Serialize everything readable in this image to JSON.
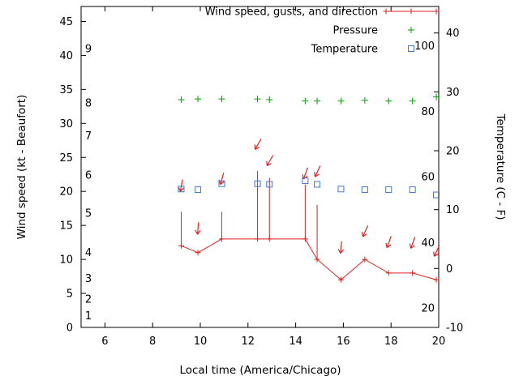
{
  "chart_data": {
    "type": "line",
    "title": "",
    "xlabel": "Local time (America/Chicago)",
    "ylabel_left": "Wind speed (kt - Beaufort)",
    "ylabel_right": "Temperature (C - F)",
    "x_range": [
      5,
      20
    ],
    "x_ticks": [
      6,
      8,
      10,
      12,
      14,
      16,
      18,
      20
    ],
    "y_left_range": [
      0,
      47.2
    ],
    "y_left_ticks": [
      0,
      5,
      10,
      15,
      20,
      25,
      30,
      35,
      40,
      45
    ],
    "beaufort_inner_labels": [
      {
        "label": "1",
        "kt": 1.7
      },
      {
        "label": "2",
        "kt": 4.2
      },
      {
        "label": "3",
        "kt": 7.2
      },
      {
        "label": "4",
        "kt": 11.0
      },
      {
        "label": "5",
        "kt": 16.8
      },
      {
        "label": "6",
        "kt": 22.4
      },
      {
        "label": "7",
        "kt": 28.2
      },
      {
        "label": "8",
        "kt": 33.0
      },
      {
        "label": "9",
        "kt": 41.0
      }
    ],
    "y_right_range": [
      -10,
      44.5
    ],
    "y_right_ticks": [
      -10,
      0,
      10,
      20,
      30,
      40
    ],
    "fahrenheit_inner_labels": [
      {
        "label": "20",
        "c": -6.7
      },
      {
        "label": "40",
        "c": 4.4
      },
      {
        "label": "60",
        "c": 15.6
      },
      {
        "label": "80",
        "c": 26.7
      },
      {
        "label": "100",
        "c": 37.8
      }
    ],
    "colors": {
      "wind": "#dd2222",
      "pressure": "#00a000",
      "temperature": "#4477cc",
      "axis": "#000000"
    },
    "x": [
      9.2,
      9.9,
      10.9,
      12.4,
      12.9,
      14.4,
      14.9,
      15.9,
      16.9,
      17.9,
      18.9,
      19.9
    ],
    "series": {
      "wind_speed_kt": [
        12,
        11,
        13,
        13,
        13,
        13,
        10,
        7,
        10,
        8,
        8,
        7
      ],
      "wind_gust_kt": [
        17,
        null,
        17,
        23,
        22,
        21,
        18,
        null,
        null,
        null,
        null,
        null
      ],
      "wind_direction_arrows": [
        {
          "x": 9.2,
          "kt": 20.7,
          "rot_deg": 10
        },
        {
          "x": 9.9,
          "kt": 14.4,
          "rot_deg": 5
        },
        {
          "x": 10.9,
          "kt": 21.7,
          "rot_deg": 15
        },
        {
          "x": 12.4,
          "kt": 26.8,
          "rot_deg": 30
        },
        {
          "x": 12.9,
          "kt": 24.4,
          "rot_deg": 30
        },
        {
          "x": 14.4,
          "kt": 22.5,
          "rot_deg": 20
        },
        {
          "x": 14.9,
          "kt": 22.8,
          "rot_deg": 25
        },
        {
          "x": 15.9,
          "kt": 11.6,
          "rot_deg": 5
        },
        {
          "x": 16.9,
          "kt": 14.0,
          "rot_deg": 25
        },
        {
          "x": 17.9,
          "kt": 12.4,
          "rot_deg": 20
        },
        {
          "x": 18.9,
          "kt": 12.3,
          "rot_deg": 20
        },
        {
          "x": 19.9,
          "kt": 11.1,
          "rot_deg": 25
        }
      ],
      "pressure_display_y_kt": [
        33.5,
        33.6,
        33.6,
        33.6,
        33.5,
        33.3,
        33.3,
        33.3,
        33.4,
        33.3,
        33.3,
        33.9
      ],
      "temperature_c": [
        13.5,
        13.4,
        14.4,
        14.4,
        14.3,
        14.9,
        14.3,
        13.5,
        13.4,
        13.4,
        13.4,
        12.5
      ]
    },
    "legend": {
      "position": "top-right-inside",
      "entries": [
        {
          "label": "Wind speed, gusts, and direction",
          "marker": "line-plus",
          "color_key": "wind"
        },
        {
          "label": "Pressure",
          "marker": "plus",
          "color_key": "pressure"
        },
        {
          "label": "Temperature",
          "marker": "open-square",
          "color_key": "temperature"
        }
      ]
    }
  }
}
